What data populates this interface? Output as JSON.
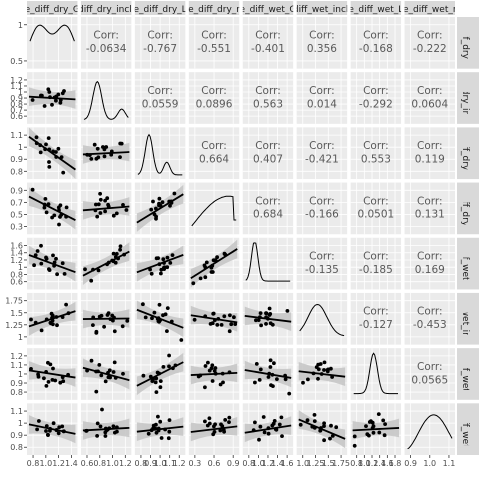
{
  "chart_data": {
    "type": "scatter-matrix",
    "title": "",
    "variables": [
      {
        "strip": "e_diff_dry_G",
        "ticks": [
          0.8,
          1.0,
          1.2,
          1.4
        ],
        "tick_labels": [
          "0.8",
          "1.0",
          "1.2",
          "1.4"
        ],
        "y_ticks": [
          0.5,
          1.0
        ]
      },
      {
        "strip": "diff_dry_incli",
        "ticks": [
          0.6,
          0.8,
          1.0,
          1.2
        ],
        "tick_labels": [
          "0.6",
          "0.8",
          "1.0",
          "1.2"
        ],
        "y_ticks": [
          0.6,
          0.7,
          0.8,
          0.9,
          1.0,
          1.1,
          1.2
        ]
      },
      {
        "strip": "e_diff_dry_L",
        "ticks": [
          0.8,
          0.9,
          1.0,
          1.1,
          1.2
        ],
        "tick_labels": [
          "0.8",
          "0.9",
          "1.0",
          "1.1",
          "1.2"
        ],
        "y_ticks": [
          0.8,
          0.9,
          1.0,
          1.1
        ]
      },
      {
        "strip": "e_diff_dry_r",
        "ticks": [
          0.3,
          0.6,
          0.9
        ],
        "tick_labels": [
          "0.3",
          "0.6",
          "0.9"
        ],
        "y_ticks": [
          0.3,
          0.5,
          0.7,
          0.9
        ]
      },
      {
        "strip": "e_diff_wet_G",
        "ticks": [
          0.8,
          1.0,
          1.2,
          1.4,
          1.6
        ],
        "tick_labels": [
          "0.8",
          "1.0",
          "1.2",
          "1.4",
          "1.6"
        ],
        "y_ticks": [
          0.6,
          0.8,
          1.0,
          1.2,
          1.4,
          1.6
        ]
      },
      {
        "strip": "diff_wet_incli",
        "ticks": [
          1.0,
          1.25,
          1.5,
          1.75
        ],
        "tick_labels": [
          "1.0",
          "1.25",
          "1.5",
          "1.75"
        ],
        "y_ticks": [
          1.0,
          1.25,
          1.5,
          1.75
        ]
      },
      {
        "strip": "e_diff_wet_L",
        "ticks": [
          0.8,
          1.0,
          1.2,
          1.4,
          1.6,
          1.8
        ],
        "tick_labels": [
          "0.8",
          "1.0",
          "1.2",
          "1.4",
          "1.6",
          "1.8"
        ],
        "y_ticks": [
          0.8,
          0.9,
          1.0,
          1.1,
          1.2
        ]
      },
      {
        "strip": "e_diff_wet_r",
        "ticks": [
          0.9,
          1.0,
          1.1
        ],
        "tick_labels": [
          "0.9",
          "1.0",
          "1.1"
        ],
        "y_ticks": [
          0.8,
          0.9,
          1.0,
          1.1
        ]
      }
    ],
    "corr_label": "Corr:",
    "correlations": [
      [
        "",
        "-0.0634",
        "-0.767",
        "-0.551",
        "-0.401",
        "0.356",
        "-0.168",
        "-0.222"
      ],
      [
        "",
        "",
        "0.0559",
        "0.0896",
        "0.563",
        "0.014",
        "-0.292",
        "0.0604"
      ],
      [
        "",
        "",
        "",
        "0.664",
        "0.407",
        "-0.421",
        "0.553",
        "0.119"
      ],
      [
        "",
        "",
        "",
        "",
        "0.684",
        "-0.166",
        "0.0501",
        "0.131"
      ],
      [
        "",
        "",
        "",
        "",
        "",
        "-0.135",
        "-0.185",
        "0.169"
      ],
      [
        "",
        "",
        "",
        "",
        "",
        "",
        "-0.127",
        "-0.453"
      ],
      [
        "",
        "",
        "",
        "",
        "",
        "",
        "",
        "0.0565"
      ],
      [
        "",
        "",
        "",
        "",
        "",
        "",
        "",
        ""
      ]
    ],
    "grid": true,
    "colors": {
      "panel_bg": "#ebebeb",
      "grid": "#ffffff",
      "strip_bg": "#d9d9d9",
      "points": "#000000",
      "band": "#c6c6c6",
      "corr_text": "#595959",
      "axis_text": "#4d4d4d"
    }
  }
}
